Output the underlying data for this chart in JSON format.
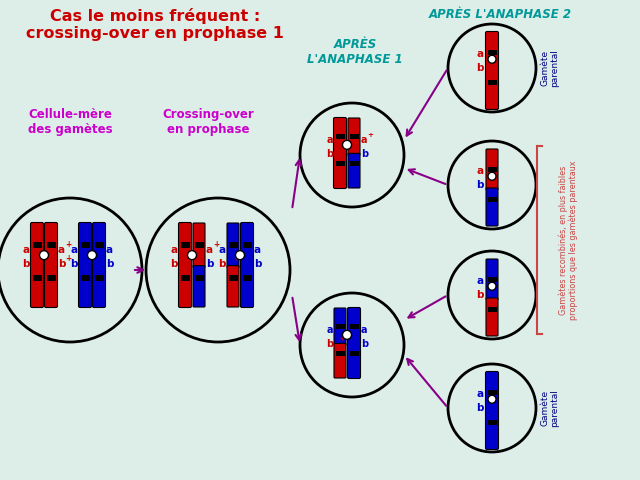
{
  "bg_color": "#ddeee8",
  "title_text": "Cas le moins fréquent :\ncrossing-over en prophase 1",
  "title_color": "#cc0000",
  "title_fontsize": 11.5,
  "label_cellule": "Cellule-mère\ndes gamètes",
  "label_crossing": "Crossing-over\nen prophase",
  "label_anaphase1": "APRÈS\nL'ANAPHASE 1",
  "label_anaphase2": "APRÈS L'ANAPHASE 2",
  "label_color_magenta": "#cc00cc",
  "label_color_teal": "#009999",
  "red": "#cc0000",
  "blue": "#0000cc",
  "black": "#000000",
  "white": "#ffffff",
  "navy": "#000080",
  "brace_color": "#cc4444",
  "arrow_color": "#880088"
}
